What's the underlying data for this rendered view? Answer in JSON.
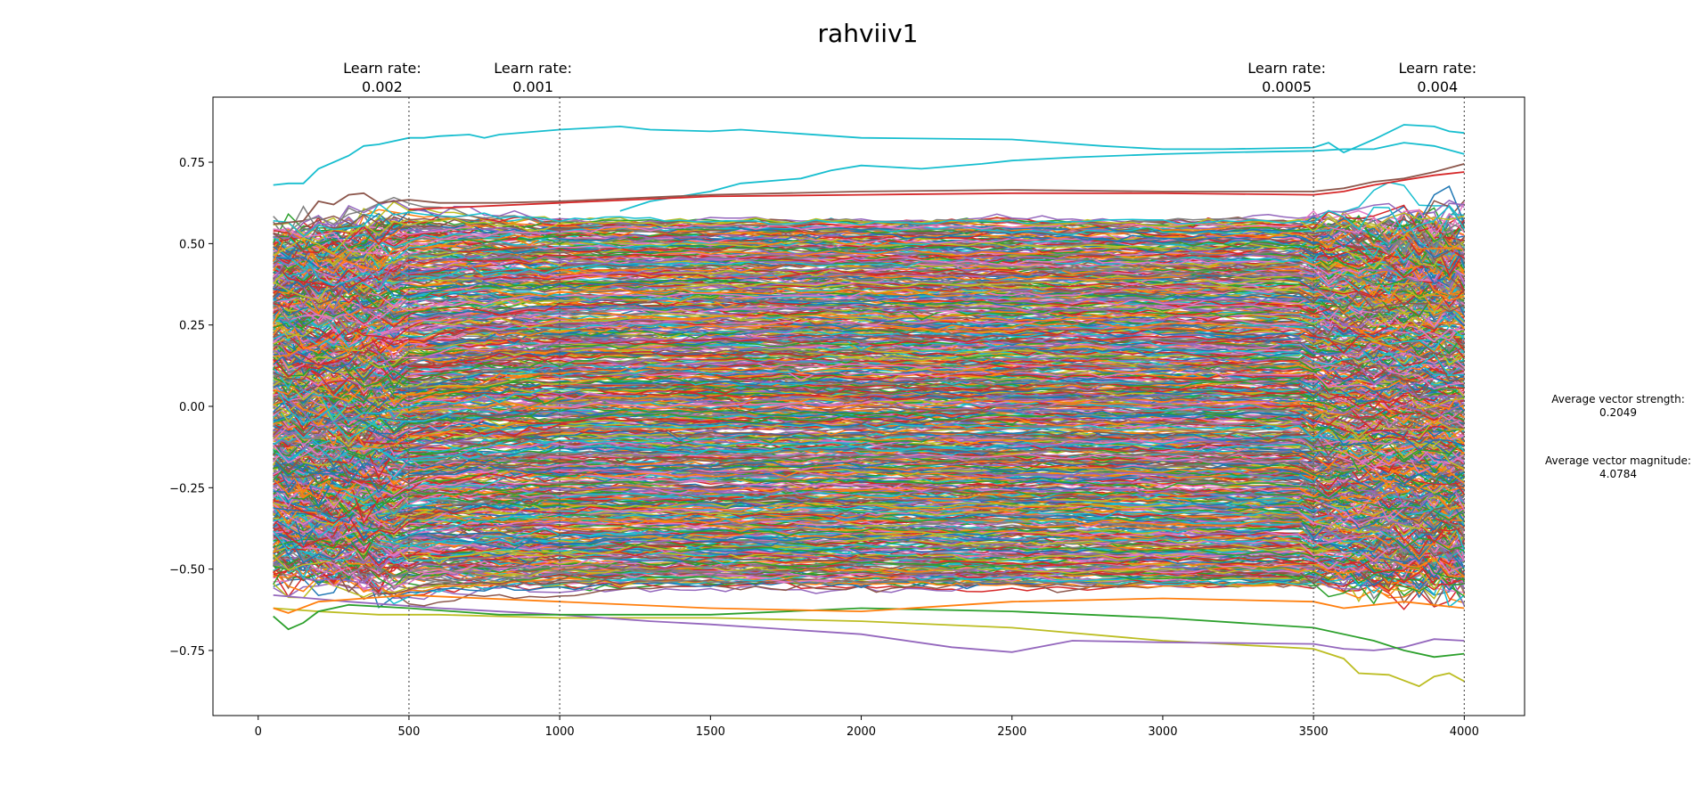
{
  "chart_data": {
    "type": "line",
    "title": "rahviiv1",
    "xlabel": "",
    "ylabel": "",
    "xlim": [
      -150,
      4200
    ],
    "ylim": [
      -0.95,
      0.95
    ],
    "x_ticks": [
      0,
      500,
      1000,
      1500,
      2000,
      2500,
      3000,
      3500,
      4000
    ],
    "y_ticks": [
      0.75,
      0.5,
      0.25,
      0.0,
      -0.25,
      -0.5,
      -0.75
    ],
    "y_tick_labels": [
      "0.75",
      "0.50",
      "0.25",
      "0.00",
      "−0.25",
      "−0.50",
      "−0.75"
    ],
    "grid": false,
    "legend": "none",
    "x_range": [
      50,
      4000
    ],
    "learn_rate_markers": [
      {
        "x": 500,
        "label": "Learn rate:",
        "value": "0.002"
      },
      {
        "x": 1000,
        "label": "Learn rate:",
        "value": "0.001"
      },
      {
        "x": 3500,
        "label": "Learn rate:",
        "value": "0.0005"
      },
      {
        "x": 4000,
        "label": "Learn rate:",
        "value": "0.004"
      }
    ],
    "stats": {
      "strength_label": "Average vector strength:",
      "strength_value": "0.2049",
      "magnitude_label": "Average vector magnitude:",
      "magnitude_value": "4.0784"
    },
    "highlight_series": [
      {
        "color": "#17becf",
        "points": [
          [
            50,
            0.68
          ],
          [
            100,
            0.685
          ],
          [
            150,
            0.685
          ],
          [
            200,
            0.73
          ],
          [
            300,
            0.77
          ],
          [
            350,
            0.8
          ],
          [
            400,
            0.805
          ],
          [
            500,
            0.825
          ],
          [
            550,
            0.825
          ],
          [
            600,
            0.83
          ],
          [
            700,
            0.835
          ],
          [
            750,
            0.825
          ],
          [
            800,
            0.835
          ],
          [
            1000,
            0.85
          ],
          [
            1200,
            0.86
          ],
          [
            1300,
            0.85
          ],
          [
            1500,
            0.845
          ],
          [
            1600,
            0.85
          ],
          [
            2000,
            0.825
          ],
          [
            2500,
            0.82
          ],
          [
            2800,
            0.8
          ],
          [
            3000,
            0.79
          ],
          [
            3200,
            0.79
          ],
          [
            3500,
            0.795
          ],
          [
            3550,
            0.81
          ],
          [
            3600,
            0.78
          ],
          [
            3650,
            0.8
          ],
          [
            3700,
            0.82
          ],
          [
            3800,
            0.865
          ],
          [
            3900,
            0.86
          ],
          [
            3950,
            0.845
          ],
          [
            4000,
            0.84
          ]
        ]
      },
      {
        "color": "#17becf",
        "points": [
          [
            1200,
            0.6
          ],
          [
            1300,
            0.63
          ],
          [
            1500,
            0.66
          ],
          [
            1600,
            0.685
          ],
          [
            1800,
            0.7
          ],
          [
            1900,
            0.725
          ],
          [
            2000,
            0.74
          ],
          [
            2100,
            0.735
          ],
          [
            2200,
            0.73
          ],
          [
            2400,
            0.745
          ],
          [
            2500,
            0.755
          ],
          [
            2700,
            0.765
          ],
          [
            3000,
            0.775
          ],
          [
            3200,
            0.78
          ],
          [
            3500,
            0.785
          ],
          [
            3600,
            0.79
          ],
          [
            3700,
            0.79
          ],
          [
            3800,
            0.81
          ],
          [
            3900,
            0.8
          ],
          [
            4000,
            0.775
          ]
        ]
      },
      {
        "color": "#8c564b",
        "points": [
          [
            50,
            0.56
          ],
          [
            150,
            0.57
          ],
          [
            200,
            0.63
          ],
          [
            250,
            0.62
          ],
          [
            300,
            0.65
          ],
          [
            350,
            0.655
          ],
          [
            400,
            0.625
          ],
          [
            500,
            0.635
          ],
          [
            600,
            0.625
          ],
          [
            800,
            0.625
          ],
          [
            1000,
            0.63
          ],
          [
            1500,
            0.65
          ],
          [
            2000,
            0.66
          ],
          [
            2500,
            0.665
          ],
          [
            3000,
            0.66
          ],
          [
            3500,
            0.66
          ],
          [
            3600,
            0.67
          ],
          [
            3700,
            0.69
          ],
          [
            3800,
            0.7
          ],
          [
            3900,
            0.72
          ],
          [
            4000,
            0.745
          ]
        ]
      },
      {
        "color": "#d62728",
        "points": [
          [
            500,
            0.605
          ],
          [
            1000,
            0.625
          ],
          [
            1500,
            0.645
          ],
          [
            2000,
            0.65
          ],
          [
            2500,
            0.655
          ],
          [
            3000,
            0.655
          ],
          [
            3500,
            0.65
          ],
          [
            3600,
            0.66
          ],
          [
            3700,
            0.68
          ],
          [
            3800,
            0.695
          ],
          [
            3900,
            0.71
          ],
          [
            4000,
            0.72
          ]
        ]
      },
      {
        "color": "#bcbd22",
        "points": [
          [
            50,
            -0.62
          ],
          [
            200,
            -0.63
          ],
          [
            400,
            -0.64
          ],
          [
            600,
            -0.64
          ],
          [
            800,
            -0.645
          ],
          [
            1000,
            -0.65
          ],
          [
            1500,
            -0.65
          ],
          [
            2000,
            -0.66
          ],
          [
            2500,
            -0.68
          ],
          [
            3000,
            -0.72
          ],
          [
            3200,
            -0.73
          ],
          [
            3500,
            -0.745
          ],
          [
            3600,
            -0.775
          ],
          [
            3650,
            -0.82
          ],
          [
            3750,
            -0.825
          ],
          [
            3850,
            -0.86
          ],
          [
            3900,
            -0.83
          ],
          [
            3950,
            -0.82
          ],
          [
            4000,
            -0.845
          ]
        ]
      },
      {
        "color": "#9467bd",
        "points": [
          [
            50,
            -0.58
          ],
          [
            300,
            -0.6
          ],
          [
            600,
            -0.62
          ],
          [
            1000,
            -0.64
          ],
          [
            1300,
            -0.66
          ],
          [
            1500,
            -0.67
          ],
          [
            2000,
            -0.7
          ],
          [
            2300,
            -0.74
          ],
          [
            2500,
            -0.755
          ],
          [
            2700,
            -0.72
          ],
          [
            3000,
            -0.725
          ],
          [
            3500,
            -0.73
          ],
          [
            3600,
            -0.745
          ],
          [
            3700,
            -0.75
          ],
          [
            3800,
            -0.74
          ],
          [
            3900,
            -0.715
          ],
          [
            4000,
            -0.72
          ]
        ]
      },
      {
        "color": "#2ca02c",
        "points": [
          [
            50,
            -0.645
          ],
          [
            100,
            -0.685
          ],
          [
            150,
            -0.665
          ],
          [
            200,
            -0.63
          ],
          [
            300,
            -0.61
          ],
          [
            500,
            -0.62
          ],
          [
            800,
            -0.64
          ],
          [
            1000,
            -0.64
          ],
          [
            1500,
            -0.64
          ],
          [
            2000,
            -0.62
          ],
          [
            2500,
            -0.63
          ],
          [
            3000,
            -0.65
          ],
          [
            3500,
            -0.68
          ],
          [
            3700,
            -0.72
          ],
          [
            3800,
            -0.75
          ],
          [
            3900,
            -0.77
          ],
          [
            4000,
            -0.76
          ]
        ]
      },
      {
        "color": "#ff7f0e",
        "points": [
          [
            50,
            -0.62
          ],
          [
            100,
            -0.635
          ],
          [
            200,
            -0.6
          ],
          [
            500,
            -0.58
          ],
          [
            1000,
            -0.6
          ],
          [
            1500,
            -0.62
          ],
          [
            2000,
            -0.63
          ],
          [
            2500,
            -0.6
          ],
          [
            3000,
            -0.59
          ],
          [
            3500,
            -0.6
          ],
          [
            3600,
            -0.62
          ],
          [
            3800,
            -0.6
          ],
          [
            4000,
            -0.62
          ]
        ]
      }
    ]
  }
}
